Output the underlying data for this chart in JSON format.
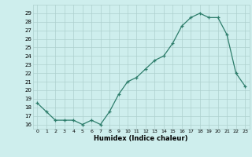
{
  "x": [
    0,
    1,
    2,
    3,
    4,
    5,
    6,
    7,
    8,
    9,
    10,
    11,
    12,
    13,
    14,
    15,
    16,
    17,
    18,
    19,
    20,
    21,
    22,
    23
  ],
  "y": [
    18.5,
    17.5,
    16.5,
    16.5,
    16.5,
    16.0,
    16.5,
    16.0,
    17.5,
    19.5,
    21.0,
    21.5,
    22.5,
    23.5,
    24.0,
    25.5,
    27.5,
    28.5,
    29.0,
    28.5,
    28.5,
    26.5,
    22.0,
    20.5
  ],
  "xlabel": "Humidex (Indice chaleur)",
  "ylim_min": 15.5,
  "ylim_max": 30.0,
  "xlim_min": -0.5,
  "xlim_max": 23.5,
  "yticks": [
    16,
    17,
    18,
    19,
    20,
    21,
    22,
    23,
    24,
    25,
    26,
    27,
    28,
    29
  ],
  "xticks": [
    0,
    1,
    2,
    3,
    4,
    5,
    6,
    7,
    8,
    9,
    10,
    11,
    12,
    13,
    14,
    15,
    16,
    17,
    18,
    19,
    20,
    21,
    22,
    23
  ],
  "line_color": "#2d7d6b",
  "marker": "+",
  "bg_color": "#ceeeed",
  "grid_color": "#aed0ce",
  "label_color": "#000000"
}
